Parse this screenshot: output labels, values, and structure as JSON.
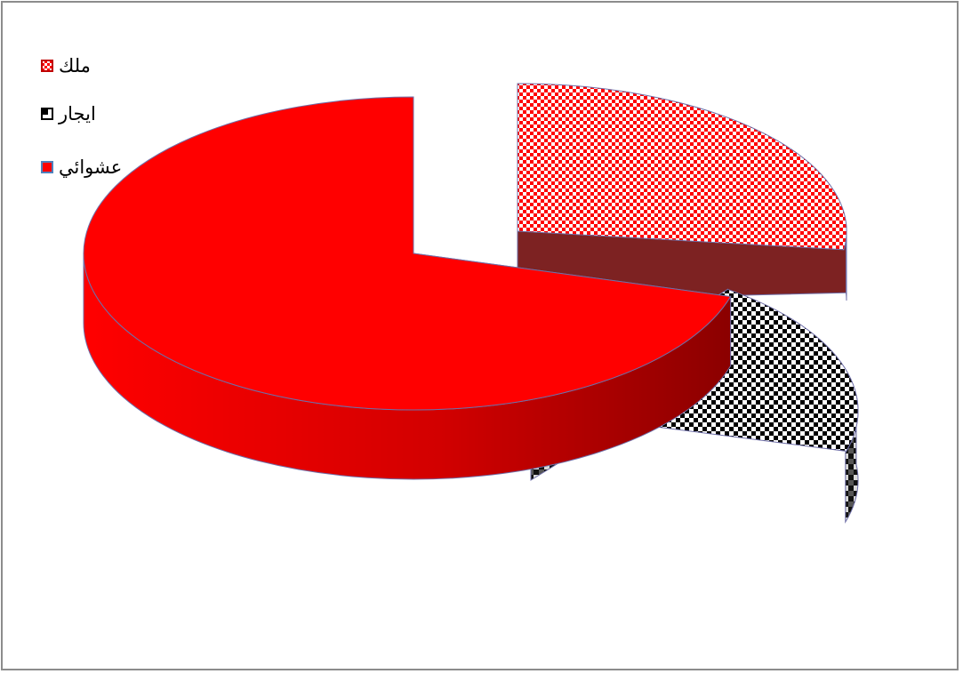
{
  "chart_data": {
    "type": "pie",
    "title": "",
    "categories": [
      "ملك",
      "ايجار",
      "عشوائي"
    ],
    "values": [
      27,
      19,
      54
    ],
    "series": [
      {
        "values": [
          27,
          19,
          54
        ]
      }
    ],
    "legend_position": "top-left",
    "grid": false,
    "three_d": true,
    "exploded": true
  },
  "legend": {
    "items": [
      {
        "label": "ملك",
        "color": "#ff0000",
        "pattern": "red-white-checker",
        "border_color": "#c00000"
      },
      {
        "label": "ايجار",
        "color": "#000000",
        "pattern": "black-white-checker",
        "border_color": "#000000"
      },
      {
        "label": "عشوائي",
        "color": "#ff0000",
        "pattern": "solid-red",
        "border_color": "#4f81bd"
      }
    ]
  },
  "colors": {
    "frame_border": "#8c8c8c",
    "red": "#ff0000",
    "dark_red": "#8b0000",
    "black": "#000000",
    "white": "#ffffff",
    "outline": "#6f6fa8"
  }
}
